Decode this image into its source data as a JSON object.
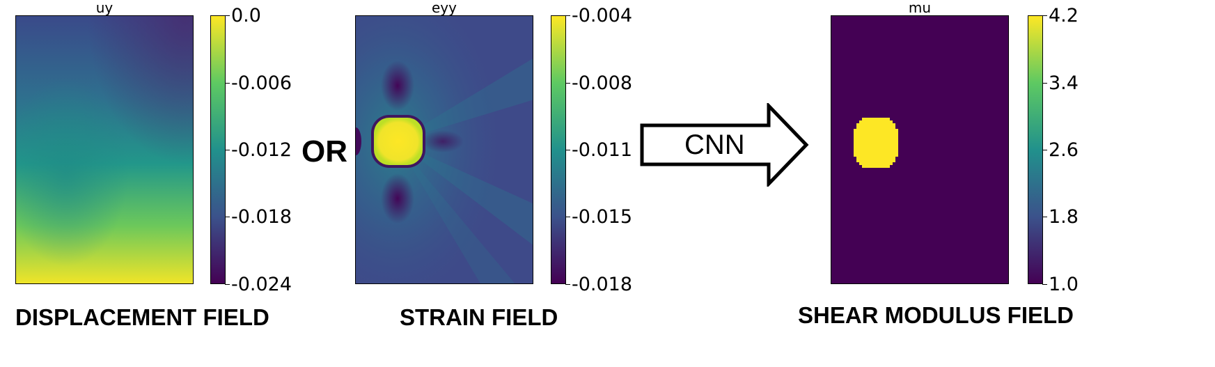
{
  "panels": {
    "displacement": {
      "title": "uy",
      "ticks": [
        "0.0",
        "-0.006",
        "-0.012",
        "-0.018",
        "-0.024"
      ],
      "caption": "DISPLACEMENT FIELD"
    },
    "strain": {
      "title": "eyy",
      "ticks": [
        "-0.004",
        "-0.008",
        "-0.011",
        "-0.015",
        "-0.018"
      ],
      "caption": "STRAIN FIELD"
    },
    "shear": {
      "title": "mu",
      "ticks": [
        "4.2",
        "3.4",
        "2.6",
        "1.8",
        "1.0"
      ],
      "caption": "SHEAR MODULUS FIELD"
    }
  },
  "connector": {
    "or_label": "OR"
  },
  "arrow": {
    "label": "CNN"
  },
  "colors": {
    "viridis_low": "#440154",
    "viridis_high": "#fde725",
    "arrow_stroke": "#000000"
  }
}
